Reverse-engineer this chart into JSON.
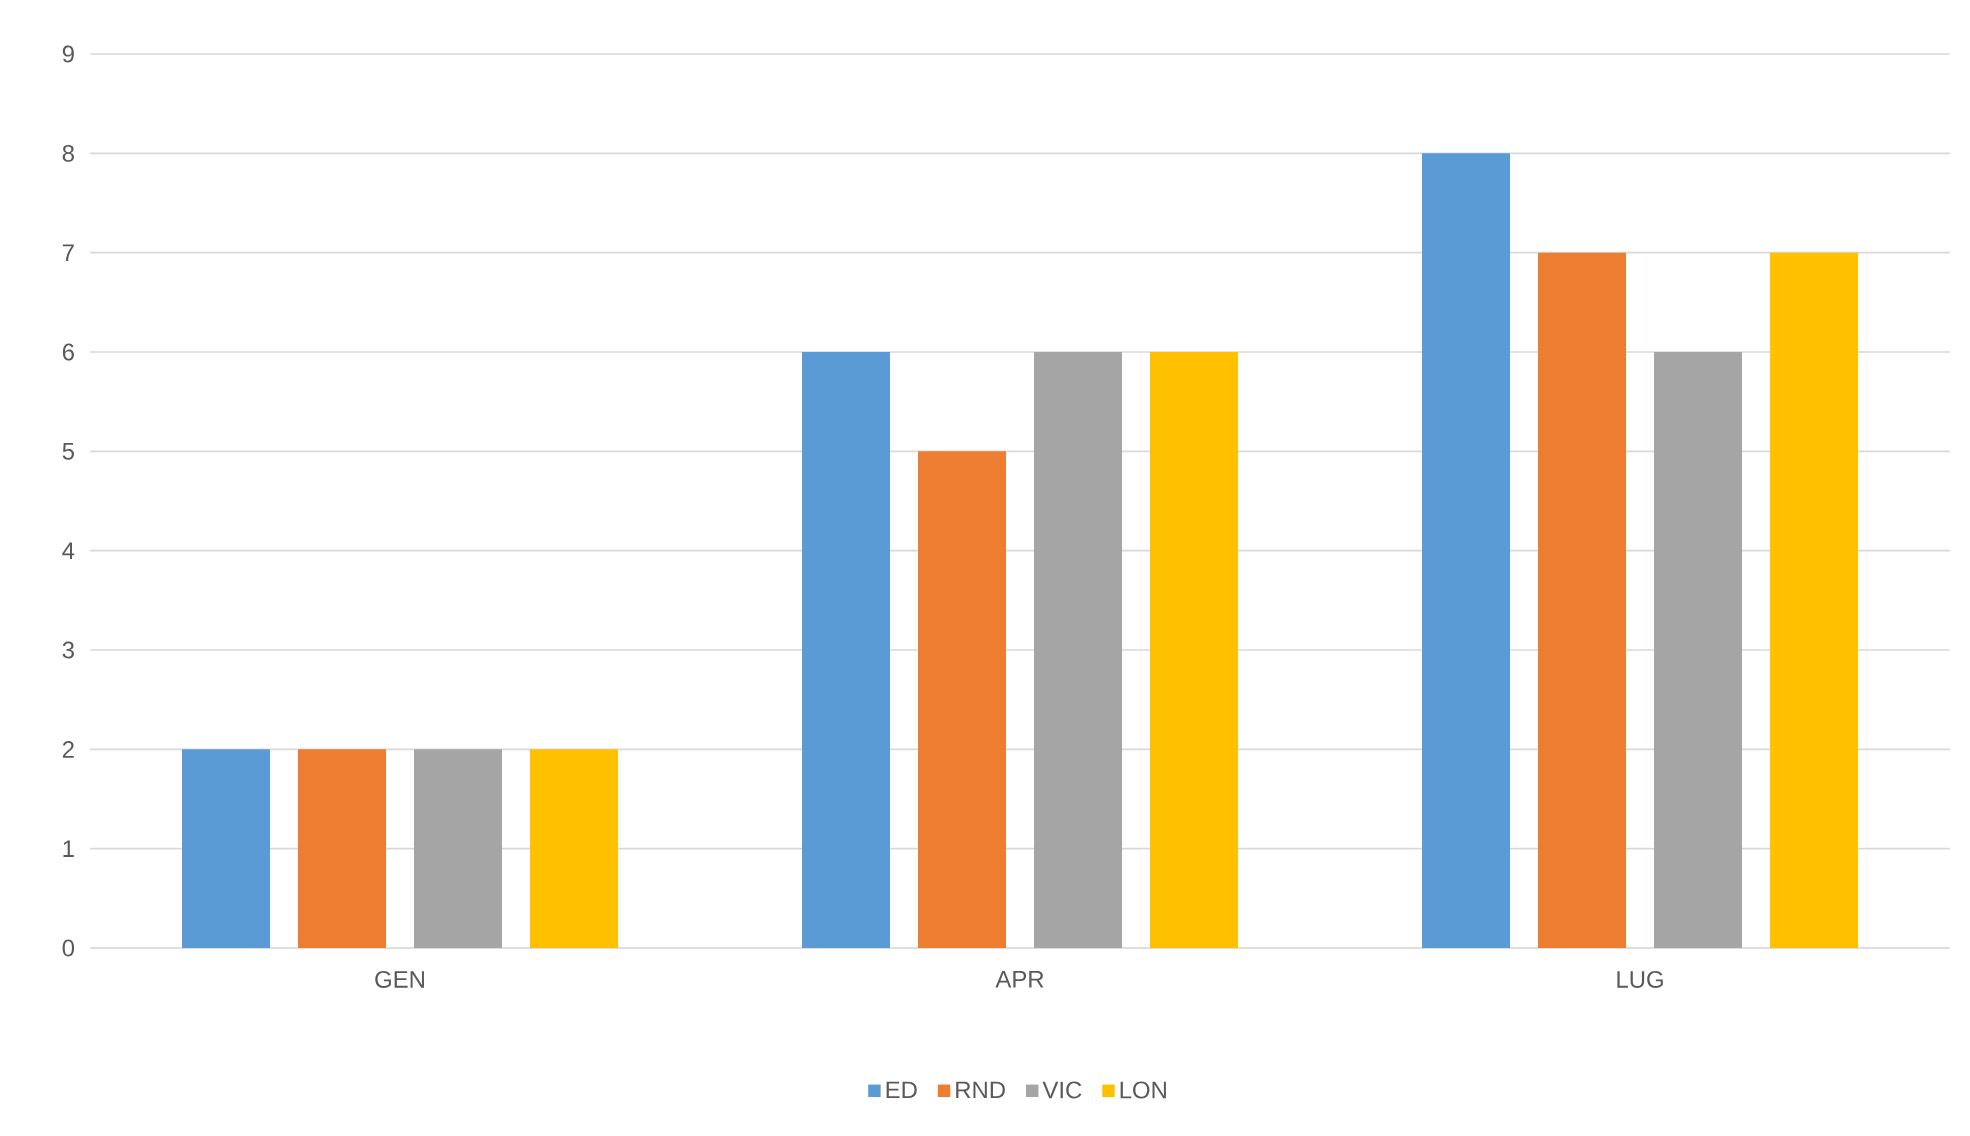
{
  "chart_data": {
    "type": "bar",
    "categories": [
      "GEN",
      "APR",
      "LUG"
    ],
    "series": [
      {
        "name": "ED",
        "color": "#5b9bd5",
        "values": [
          2,
          6,
          8
        ]
      },
      {
        "name": "RND",
        "color": "#ed7d31",
        "values": [
          2,
          5,
          7
        ]
      },
      {
        "name": "VIC",
        "color": "#a5a5a5",
        "values": [
          2,
          6,
          6
        ]
      },
      {
        "name": "LON",
        "color": "#ffc000",
        "values": [
          2,
          6,
          7
        ]
      }
    ],
    "ylim": [
      0,
      9
    ],
    "yticks": [
      0,
      1,
      2,
      3,
      4,
      5,
      6,
      7,
      8,
      9
    ],
    "grid": "y",
    "legend": "bottom"
  }
}
